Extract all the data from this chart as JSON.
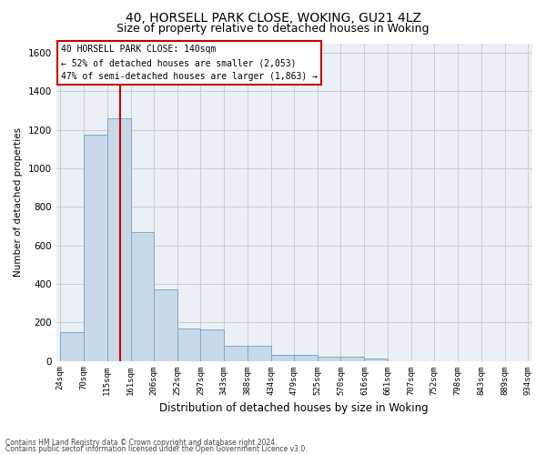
{
  "title_line1": "40, HORSELL PARK CLOSE, WOKING, GU21 4LZ",
  "title_line2": "Size of property relative to detached houses in Woking",
  "xlabel": "Distribution of detached houses by size in Woking",
  "ylabel": "Number of detached properties",
  "annotation_line1": "40 HORSELL PARK CLOSE: 140sqm",
  "annotation_line2": "← 52% of detached houses are smaller (2,053)",
  "annotation_line3": "47% of semi-detached houses are larger (1,863) →",
  "footer_line1": "Contains HM Land Registry data © Crown copyright and database right 2024.",
  "footer_line2": "Contains public sector information licensed under the Open Government Licence v3.0.",
  "bar_edges": [
    24,
    70,
    115,
    161,
    206,
    252,
    297,
    343,
    388,
    434,
    479,
    525,
    570,
    616,
    661,
    707,
    752,
    798,
    843,
    889,
    934
  ],
  "bar_heights": [
    150,
    1175,
    1260,
    670,
    370,
    170,
    165,
    80,
    80,
    30,
    30,
    20,
    20,
    10,
    0,
    0,
    0,
    0,
    0,
    0
  ],
  "bar_color": "#c8d8e8",
  "bar_edgecolor": "#7aaac8",
  "vline_x": 140,
  "vline_color": "#cc0000",
  "ylim": [
    0,
    1650
  ],
  "yticks": [
    0,
    200,
    400,
    600,
    800,
    1000,
    1200,
    1400,
    1600
  ],
  "grid_color": "#cccccc",
  "bg_color": "#eaf0f6",
  "annotation_box_color": "#cc0000",
  "title_fontsize": 10,
  "subtitle_fontsize": 9
}
